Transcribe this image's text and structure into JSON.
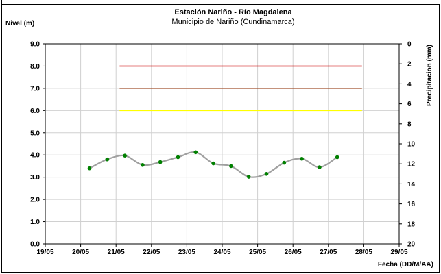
{
  "chart_data": {
    "type": "line",
    "title": "Estación Nariño  - Río Magdalena",
    "subtitle": "Municipio de Nariño (Cundinamarca)",
    "ylabel": "Nivel (m)",
    "y2label": "Precipitacion (mm)",
    "xlabel": "Fecha (DD/M/AA)",
    "categories": [
      "19/05",
      "20/05",
      "21/05",
      "22/05",
      "23/05",
      "24/05",
      "25/05",
      "26/05",
      "27/05",
      "28/05",
      "29/05"
    ],
    "ylim": [
      0,
      9
    ],
    "y_ticks": [
      "0.0",
      "1.0",
      "2.0",
      "3.0",
      "4.0",
      "5.0",
      "6.0",
      "7.0",
      "8.0",
      "9.0"
    ],
    "y2lim": [
      0,
      20
    ],
    "y2_reversed": true,
    "y2_ticks": [
      "0",
      "2",
      "4",
      "6",
      "8",
      "10",
      "12",
      "14",
      "16",
      "18",
      "20"
    ],
    "grid": true,
    "series": [
      {
        "color": "#a0a0a0",
        "marker_color": "#008000",
        "x": [
          1.25,
          1.75,
          2.25,
          2.75,
          3.25,
          3.75,
          4.25,
          4.75,
          5.25,
          5.75,
          6.25,
          6.75,
          7.25,
          7.75,
          8.25
        ],
        "values": [
          3.4,
          3.8,
          3.97,
          3.55,
          3.68,
          3.9,
          4.12,
          3.62,
          3.5,
          3.02,
          3.15,
          3.65,
          3.83,
          3.45,
          3.9
        ]
      }
    ],
    "thresholds": [
      {
        "value": 8.0,
        "color": "#cc0000",
        "x_start": 2.1,
        "x_end": 8.95
      },
      {
        "value": 7.0,
        "color": "#a0522d",
        "x_start": 2.1,
        "x_end": 8.95
      },
      {
        "value": 6.0,
        "color": "#ffff00",
        "x_start": 2.1,
        "x_end": 8.95
      }
    ]
  }
}
